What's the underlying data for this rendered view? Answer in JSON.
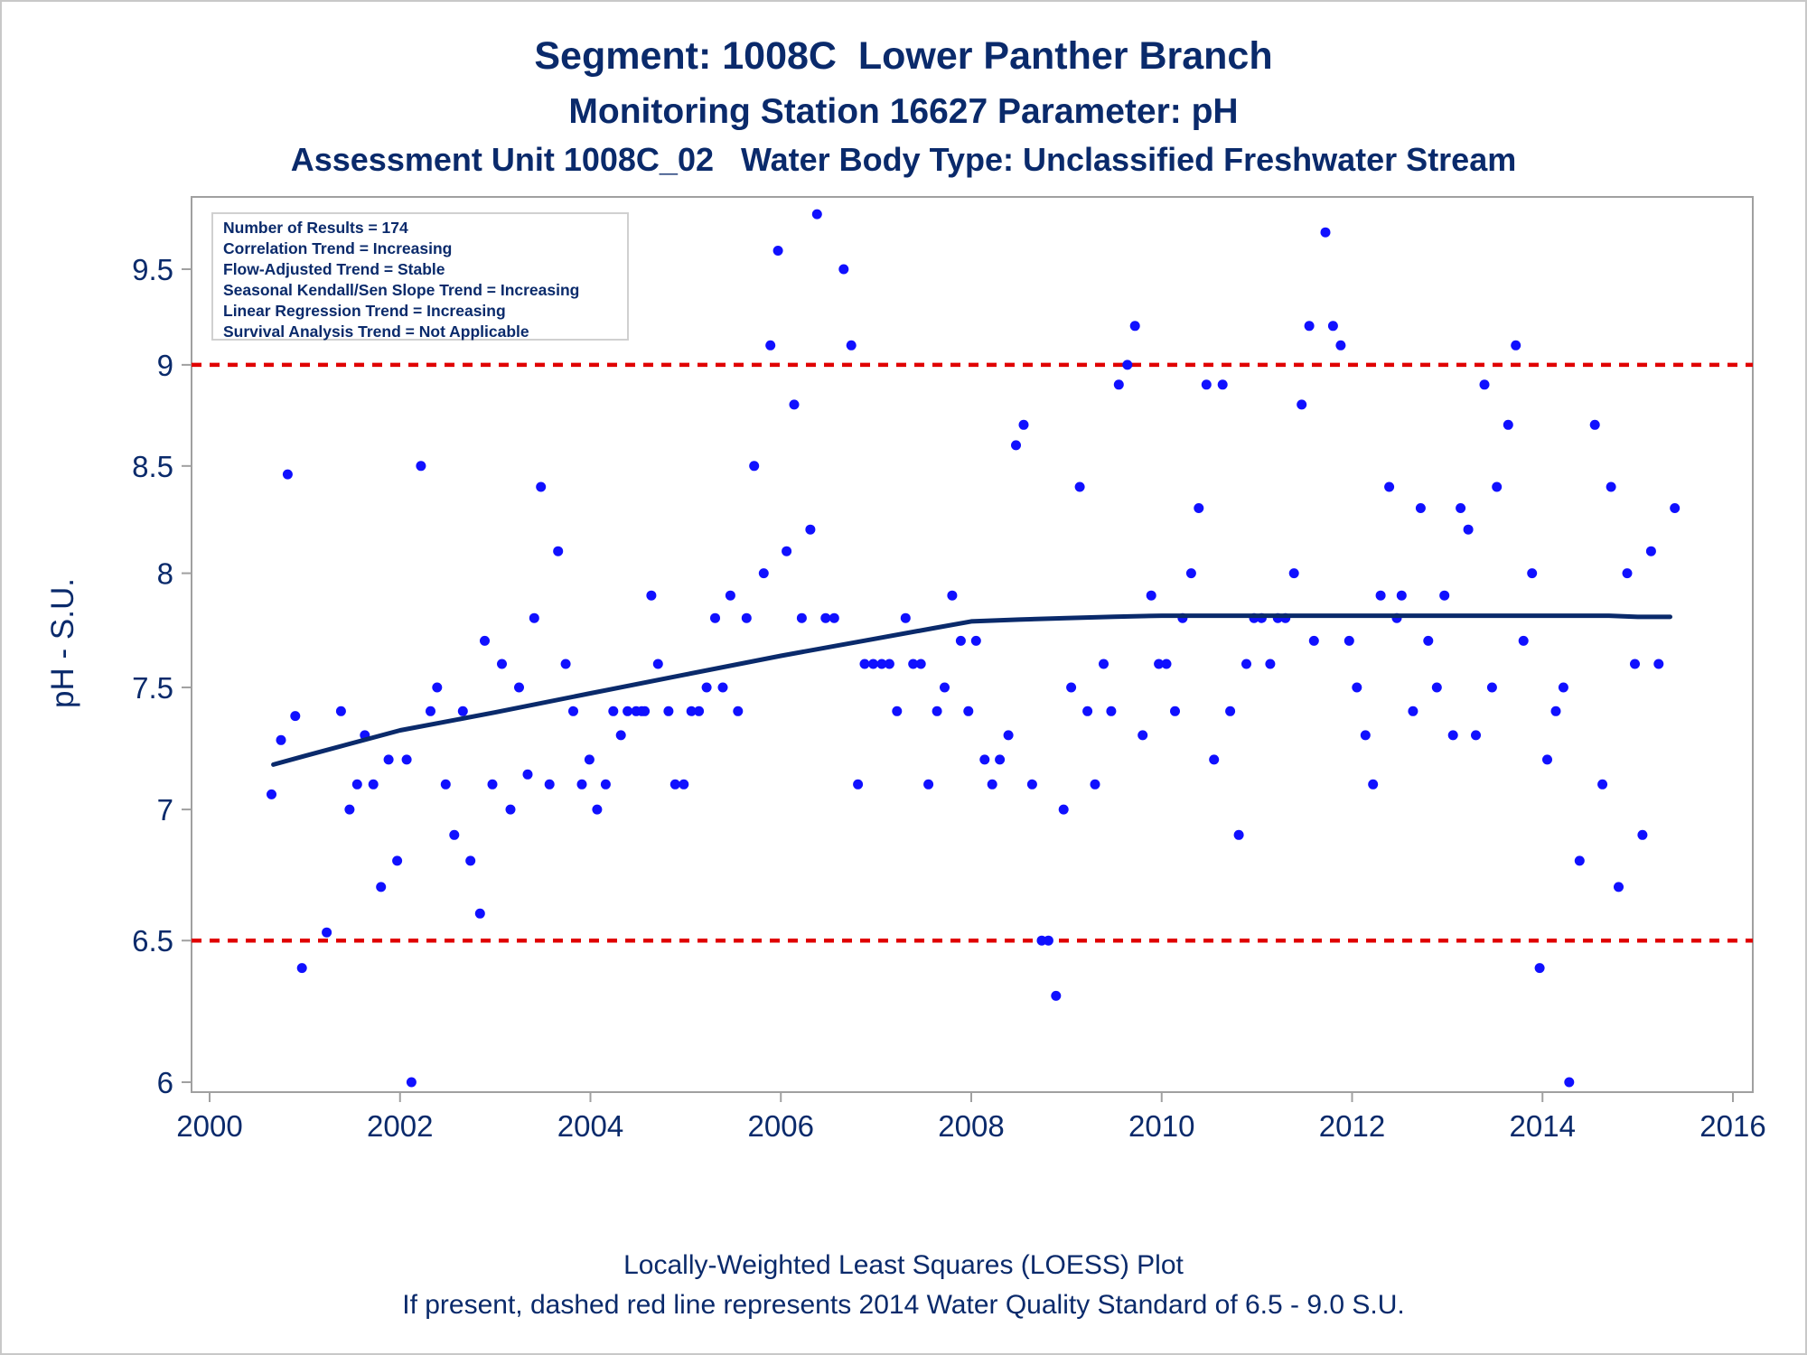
{
  "titles": {
    "line1": "Segment: 1008C  Lower Panther Branch",
    "line2": "Monitoring Station 16627 Parameter: pH",
    "line3": "Assessment Unit 1008C_02   Water Body Type: Unclassified Freshwater Stream"
  },
  "info_box": [
    "Number of Results = 174",
    "Correlation Trend = Increasing",
    "Flow-Adjusted Trend = Stable",
    "Seasonal Kendall/Sen Slope Trend = Increasing",
    "Linear Regression Trend = Increasing",
    "Survival Analysis Trend = Not Applicable"
  ],
  "footnotes": {
    "line1": "Locally-Weighted Least Squares (LOESS) Plot",
    "line2": "If present, dashed red line represents 2014 Water Quality Standard of 6.5 - 9.0 S.U."
  },
  "colors": {
    "text": "#0a2a6b",
    "points": "#1010ff",
    "loess": "#0a2a6b",
    "standard_lines": "#e00000",
    "frame": "#a0a0a0"
  },
  "chart_data": {
    "type": "scatter",
    "xlabel": "",
    "ylabel": "pH - S.U.",
    "xlim": [
      2000,
      2016
    ],
    "ylim": [
      5.96,
      9.82
    ],
    "y_scale": "log",
    "x_ticks": [
      "2000",
      "2002",
      "2004",
      "2006",
      "2008",
      "2010",
      "2012",
      "2014",
      "2016"
    ],
    "y_ticks": [
      "6",
      "6.5",
      "7",
      "7.5",
      "8",
      "8.5",
      "9",
      "9.5"
    ],
    "grid": false,
    "reference_lines": [
      {
        "y": 9.0,
        "style": "dashed",
        "color": "#e00000"
      },
      {
        "y": 6.5,
        "style": "dashed",
        "color": "#e00000"
      }
    ],
    "series": [
      {
        "type": "scatter",
        "points": [
          [
            2000.65,
            7.06
          ],
          [
            2000.75,
            7.28
          ],
          [
            2000.82,
            8.46
          ],
          [
            2000.9,
            7.38
          ],
          [
            2000.97,
            6.4
          ],
          [
            2001.23,
            6.53
          ],
          [
            2001.38,
            7.4
          ],
          [
            2001.47,
            7.0
          ],
          [
            2001.55,
            7.1
          ],
          [
            2001.63,
            7.3
          ],
          [
            2001.72,
            7.1
          ],
          [
            2001.8,
            6.7
          ],
          [
            2001.88,
            7.2
          ],
          [
            2001.97,
            6.8
          ],
          [
            2002.07,
            7.2
          ],
          [
            2002.12,
            6.0
          ],
          [
            2002.22,
            8.5
          ],
          [
            2002.32,
            7.4
          ],
          [
            2002.39,
            7.5
          ],
          [
            2002.48,
            7.1
          ],
          [
            2002.57,
            6.9
          ],
          [
            2002.66,
            7.4
          ],
          [
            2002.74,
            6.8
          ],
          [
            2002.84,
            6.6
          ],
          [
            2002.89,
            7.7
          ],
          [
            2002.97,
            7.1
          ],
          [
            2003.07,
            7.6
          ],
          [
            2003.16,
            7.0
          ],
          [
            2003.25,
            7.5
          ],
          [
            2003.34,
            7.14
          ],
          [
            2003.41,
            7.8
          ],
          [
            2003.48,
            8.4
          ],
          [
            2003.57,
            7.1
          ],
          [
            2003.66,
            8.1
          ],
          [
            2003.74,
            7.6
          ],
          [
            2003.82,
            7.4
          ],
          [
            2003.91,
            7.1
          ],
          [
            2003.99,
            7.2
          ],
          [
            2004.07,
            7.0
          ],
          [
            2004.16,
            7.1
          ],
          [
            2004.24,
            7.4
          ],
          [
            2004.32,
            7.3
          ],
          [
            2004.39,
            7.4
          ],
          [
            2004.48,
            7.4
          ],
          [
            2004.54,
            7.4
          ],
          [
            2004.57,
            7.4
          ],
          [
            2004.64,
            7.9
          ],
          [
            2004.71,
            7.6
          ],
          [
            2004.82,
            7.4
          ],
          [
            2004.89,
            7.1
          ],
          [
            2004.98,
            7.1
          ],
          [
            2005.06,
            7.4
          ],
          [
            2005.14,
            7.4
          ],
          [
            2005.22,
            7.5
          ],
          [
            2005.31,
            7.8
          ],
          [
            2005.39,
            7.5
          ],
          [
            2005.47,
            7.9
          ],
          [
            2005.55,
            7.4
          ],
          [
            2005.64,
            7.8
          ],
          [
            2005.72,
            8.5
          ],
          [
            2005.82,
            8.0
          ],
          [
            2005.89,
            9.1
          ],
          [
            2005.97,
            9.6
          ],
          [
            2006.06,
            8.1
          ],
          [
            2006.14,
            8.8
          ],
          [
            2006.22,
            7.8
          ],
          [
            2006.31,
            8.2
          ],
          [
            2006.38,
            9.8
          ],
          [
            2006.47,
            7.8
          ],
          [
            2006.56,
            7.8
          ],
          [
            2006.66,
            9.5
          ],
          [
            2006.74,
            9.1
          ],
          [
            2006.81,
            7.1
          ],
          [
            2006.88,
            7.6
          ],
          [
            2006.97,
            7.6
          ],
          [
            2007.06,
            7.6
          ],
          [
            2007.14,
            7.6
          ],
          [
            2007.22,
            7.4
          ],
          [
            2007.31,
            7.8
          ],
          [
            2007.39,
            7.6
          ],
          [
            2007.47,
            7.6
          ],
          [
            2007.55,
            7.1
          ],
          [
            2007.64,
            7.4
          ],
          [
            2007.72,
            7.5
          ],
          [
            2007.8,
            7.9
          ],
          [
            2007.89,
            7.7
          ],
          [
            2007.97,
            7.4
          ],
          [
            2008.05,
            7.7
          ],
          [
            2008.14,
            7.2
          ],
          [
            2008.22,
            7.1
          ],
          [
            2008.3,
            7.2
          ],
          [
            2008.39,
            7.3
          ],
          [
            2008.47,
            8.6
          ],
          [
            2008.55,
            8.7
          ],
          [
            2008.64,
            7.1
          ],
          [
            2008.74,
            6.5
          ],
          [
            2008.81,
            6.5
          ],
          [
            2008.89,
            6.3
          ],
          [
            2008.97,
            7.0
          ],
          [
            2009.05,
            7.5
          ],
          [
            2009.14,
            8.4
          ],
          [
            2009.22,
            7.4
          ],
          [
            2009.3,
            7.1
          ],
          [
            2009.39,
            7.6
          ],
          [
            2009.47,
            7.4
          ],
          [
            2009.55,
            8.9
          ],
          [
            2009.64,
            9.0
          ],
          [
            2009.72,
            9.2
          ],
          [
            2009.8,
            7.3
          ],
          [
            2009.89,
            7.9
          ],
          [
            2009.97,
            7.6
          ],
          [
            2010.05,
            7.6
          ],
          [
            2010.14,
            7.4
          ],
          [
            2010.22,
            7.8
          ],
          [
            2010.31,
            8.0
          ],
          [
            2010.39,
            8.3
          ],
          [
            2010.47,
            8.9
          ],
          [
            2010.55,
            7.2
          ],
          [
            2010.64,
            8.9
          ],
          [
            2010.72,
            7.4
          ],
          [
            2010.81,
            6.9
          ],
          [
            2010.89,
            7.6
          ],
          [
            2010.97,
            7.8
          ],
          [
            2011.05,
            7.8
          ],
          [
            2011.14,
            7.6
          ],
          [
            2011.22,
            7.8
          ],
          [
            2011.3,
            7.8
          ],
          [
            2011.39,
            8.0
          ],
          [
            2011.47,
            8.8
          ],
          [
            2011.55,
            9.2
          ],
          [
            2011.6,
            7.7
          ],
          [
            2011.72,
            9.7
          ],
          [
            2011.8,
            9.2
          ],
          [
            2011.88,
            9.1
          ],
          [
            2011.97,
            7.7
          ],
          [
            2012.05,
            7.5
          ],
          [
            2012.14,
            7.3
          ],
          [
            2012.22,
            7.1
          ],
          [
            2012.3,
            7.9
          ],
          [
            2012.39,
            8.4
          ],
          [
            2012.47,
            7.8
          ],
          [
            2012.52,
            7.9
          ],
          [
            2012.64,
            7.4
          ],
          [
            2012.72,
            8.3
          ],
          [
            2012.8,
            7.7
          ],
          [
            2012.89,
            7.5
          ],
          [
            2012.97,
            7.9
          ],
          [
            2013.06,
            7.3
          ],
          [
            2013.14,
            8.3
          ],
          [
            2013.22,
            8.2
          ],
          [
            2013.3,
            7.3
          ],
          [
            2013.39,
            8.9
          ],
          [
            2013.47,
            7.5
          ],
          [
            2013.52,
            8.4
          ],
          [
            2013.64,
            8.7
          ],
          [
            2013.72,
            9.1
          ],
          [
            2013.8,
            7.7
          ],
          [
            2013.89,
            8.0
          ],
          [
            2013.97,
            6.4
          ],
          [
            2014.05,
            7.2
          ],
          [
            2014.14,
            7.4
          ],
          [
            2014.22,
            7.5
          ],
          [
            2014.28,
            6.0
          ],
          [
            2014.39,
            6.8
          ],
          [
            2014.55,
            8.7
          ],
          [
            2014.63,
            7.1
          ],
          [
            2014.72,
            8.4
          ],
          [
            2014.8,
            6.7
          ],
          [
            2014.89,
            8.0
          ],
          [
            2014.97,
            7.6
          ],
          [
            2015.05,
            6.9
          ],
          [
            2015.14,
            8.1
          ],
          [
            2015.22,
            7.6
          ],
          [
            2015.39,
            8.3
          ]
        ]
      },
      {
        "type": "line",
        "points": [
          [
            2000.67,
            7.18
          ],
          [
            2001.0,
            7.215
          ],
          [
            2002.0,
            7.32
          ],
          [
            2003.0,
            7.395
          ],
          [
            2004.0,
            7.475
          ],
          [
            2005.0,
            7.555
          ],
          [
            2006.0,
            7.635
          ],
          [
            2007.0,
            7.71
          ],
          [
            2007.6,
            7.755
          ],
          [
            2008.0,
            7.785
          ],
          [
            2008.5,
            7.793
          ],
          [
            2009.0,
            7.8
          ],
          [
            2009.5,
            7.806
          ],
          [
            2010.0,
            7.81
          ],
          [
            2011.0,
            7.81
          ],
          [
            2012.0,
            7.81
          ],
          [
            2013.0,
            7.81
          ],
          [
            2014.0,
            7.81
          ],
          [
            2014.7,
            7.81
          ],
          [
            2015.0,
            7.805
          ],
          [
            2015.34,
            7.805
          ]
        ]
      }
    ]
  }
}
